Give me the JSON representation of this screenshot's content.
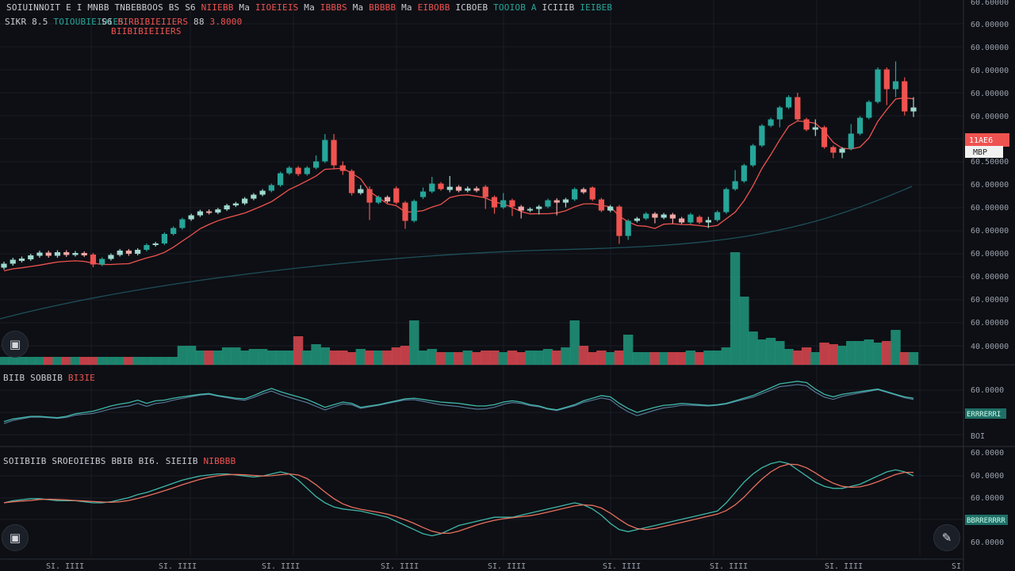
{
  "header": {
    "line1": [
      {
        "text": "SOIUINNOIT",
        "color": "w"
      },
      {
        "text": "E I",
        "color": "w"
      },
      {
        "text": "MNBB",
        "color": "w"
      },
      {
        "text": "TNBEBBOOS",
        "color": "w"
      },
      {
        "text": "BS",
        "color": "w"
      },
      {
        "text": "S6",
        "color": "w"
      },
      {
        "text": "NIIEBB",
        "color": "r"
      },
      {
        "text": "Ma",
        "color": "w"
      },
      {
        "text": "IIOEIEIS",
        "color": "r"
      },
      {
        "text": "Ma",
        "color": "w"
      },
      {
        "text": "IBBBS",
        "color": "r"
      },
      {
        "text": "Ma",
        "color": "w"
      },
      {
        "text": "BBBBB",
        "color": "r"
      },
      {
        "text": "Ma",
        "color": "w"
      },
      {
        "text": "EIBOBB",
        "color": "r"
      },
      {
        "text": "ICBOEB",
        "color": "w"
      },
      {
        "text": "TOOIOB A",
        "color": "g"
      },
      {
        "text": "ICIIIB",
        "color": "w"
      },
      {
        "text": "IEIBEB",
        "color": "g"
      }
    ],
    "line2_left": "SIKR 8.5",
    "line2_green": "TOIOUBIEIOIES",
    "line2_ticker": "S6",
    "line2_red1": "BIRBIBIEIIERS",
    "line2_red2": "BIIBIBIEIIERS",
    "line2_val": "88",
    "line2_val_red": "3.8000"
  },
  "price_labels": [
    "60.60000",
    "60.00000",
    "60.00000",
    "60.00000",
    "60.00000",
    "60.00000",
    "60.50000",
    "60.00000",
    "60.00000",
    "60.00000",
    "60.00000",
    "60.00000",
    "60.00000",
    "60.00000"
  ],
  "price_tags": {
    "current_red": "11AE6",
    "current_white": "MBP"
  },
  "panel2": {
    "label": "BIIB",
    "sub": "SOBBIB",
    "red": "BI3IE",
    "axis_top": "60.0000",
    "tag": "ERRRERRI",
    "axis_bottom": "BOI"
  },
  "panel3": {
    "label": "SOIIBIIB SROEOIEIBS BBIB",
    "r1": "BI6.",
    "r2": "SIEIIB",
    "red": "NIBBBB",
    "axis": [
      "60.0000",
      "60.0000",
      "60.0000",
      "60.0000"
    ],
    "tag": "BBRRERRRR"
  },
  "x_labels": [
    "SI. IIII",
    "SI. IIII",
    "SI. IIII",
    "SI. IIII",
    "SI. IIII",
    "SI. IIII",
    "SI. IIII",
    "SI. IIII",
    "SI"
  ],
  "buttons": {
    "camera_top": "camera-icon",
    "camera_bottom": "camera-icon",
    "draw": "draw-icon"
  },
  "colors": {
    "up": "#26a69a",
    "down": "#ef5350",
    "grid": "#1a1e26",
    "bg": "#0d0f14",
    "ma_fast": "#ef5350",
    "ma_slow": "#1f4f5a"
  },
  "chart_data": {
    "type": "candlestick",
    "ylim": [
      0,
      100
    ],
    "candles": [
      [
        44.5,
        45.5,
        44.0,
        46.0
      ],
      [
        45.5,
        46.5,
        45.0,
        47.0
      ],
      [
        46.2,
        46.8,
        45.8,
        47.3
      ],
      [
        46.6,
        47.6,
        46.2,
        48.0
      ],
      [
        47.5,
        48.3,
        47.0,
        48.8
      ],
      [
        48.3,
        47.5,
        47.0,
        48.8
      ],
      [
        47.5,
        48.4,
        47.0,
        48.9
      ],
      [
        48.4,
        47.7,
        47.2,
        48.9
      ],
      [
        47.7,
        48.2,
        47.3,
        48.7
      ],
      [
        48.2,
        47.6,
        47.2,
        48.6
      ],
      [
        47.8,
        45.3,
        44.6,
        48.2
      ],
      [
        45.3,
        46.7,
        44.9,
        47.1
      ],
      [
        46.7,
        47.7,
        46.3,
        48.1
      ],
      [
        47.7,
        48.8,
        47.3,
        49.2
      ],
      [
        48.8,
        48.0,
        47.5,
        49.2
      ],
      [
        48.0,
        49.0,
        47.6,
        49.4
      ],
      [
        49.0,
        50.2,
        48.6,
        50.6
      ],
      [
        50.2,
        50.6,
        49.8,
        51.0
      ],
      [
        50.6,
        53.0,
        50.2,
        53.4
      ],
      [
        53.0,
        54.5,
        52.6,
        54.9
      ],
      [
        54.5,
        56.7,
        54.1,
        57.1
      ],
      [
        56.7,
        57.7,
        56.3,
        58.1
      ],
      [
        57.7,
        58.7,
        57.3,
        59.1
      ],
      [
        58.7,
        58.4,
        57.9,
        59.2
      ],
      [
        58.4,
        59.2,
        58.0,
        59.6
      ],
      [
        59.2,
        60.2,
        58.8,
        60.6
      ],
      [
        60.2,
        60.7,
        59.8,
        61.1
      ],
      [
        60.7,
        61.9,
        60.3,
        62.3
      ],
      [
        61.9,
        62.9,
        61.5,
        63.3
      ],
      [
        62.9,
        63.9,
        62.5,
        64.3
      ],
      [
        63.9,
        65.3,
        63.5,
        65.7
      ],
      [
        65.3,
        68.3,
        64.9,
        68.7
      ],
      [
        68.3,
        69.7,
        67.9,
        70.1
      ],
      [
        69.7,
        68.1,
        67.6,
        70.1
      ],
      [
        68.1,
        69.7,
        67.7,
        70.1
      ],
      [
        69.7,
        71.3,
        69.3,
        72.8
      ],
      [
        71.3,
        76.7,
        70.9,
        78.2
      ],
      [
        76.7,
        70.3,
        69.3,
        78.2
      ],
      [
        70.3,
        68.9,
        67.9,
        71.3
      ],
      [
        68.9,
        63.3,
        62.7,
        69.3
      ],
      [
        63.3,
        64.3,
        62.9,
        65.3
      ],
      [
        64.3,
        60.9,
        56.5,
        65.0
      ],
      [
        60.9,
        62.3,
        60.5,
        62.7
      ],
      [
        62.3,
        61.2,
        60.8,
        62.7
      ],
      [
        64.5,
        60.9,
        60.5,
        65.0
      ],
      [
        60.9,
        56.3,
        54.3,
        61.3
      ],
      [
        56.3,
        61.3,
        55.9,
        61.7
      ],
      [
        62.3,
        63.7,
        61.8,
        64.7
      ],
      [
        63.7,
        65.7,
        63.3,
        67.4
      ],
      [
        65.7,
        64.3,
        63.9,
        66.1
      ],
      [
        64.1,
        64.9,
        63.5,
        67.6
      ],
      [
        64.9,
        63.9,
        63.5,
        65.3
      ],
      [
        63.9,
        64.5,
        63.5,
        65.0
      ],
      [
        64.5,
        63.9,
        63.5,
        65.0
      ],
      [
        64.9,
        62.3,
        59.3,
        65.3
      ],
      [
        62.3,
        59.7,
        58.1,
        62.7
      ],
      [
        59.7,
        61.5,
        59.3,
        63.3
      ],
      [
        61.5,
        59.9,
        57.5,
        61.9
      ],
      [
        59.9,
        58.9,
        56.9,
        60.3
      ],
      [
        58.9,
        59.3,
        58.5,
        59.7
      ],
      [
        59.3,
        59.9,
        57.9,
        60.3
      ],
      [
        59.9,
        61.5,
        59.5,
        61.9
      ],
      [
        61.5,
        60.9,
        57.7,
        62.0
      ],
      [
        60.9,
        61.7,
        59.7,
        62.1
      ],
      [
        61.7,
        64.3,
        61.3,
        64.7
      ],
      [
        64.3,
        63.5,
        63.1,
        64.7
      ],
      [
        64.7,
        61.7,
        61.3,
        65.0
      ],
      [
        61.7,
        58.9,
        58.5,
        62.1
      ],
      [
        58.9,
        59.9,
        58.5,
        60.3
      ],
      [
        59.9,
        52.5,
        50.5,
        60.3
      ],
      [
        52.5,
        56.3,
        51.5,
        56.7
      ],
      [
        56.3,
        56.9,
        55.9,
        57.3
      ],
      [
        56.9,
        58.1,
        56.5,
        58.5
      ],
      [
        58.1,
        57.1,
        55.7,
        58.5
      ],
      [
        57.1,
        57.9,
        56.7,
        58.3
      ],
      [
        57.9,
        56.9,
        55.7,
        58.3
      ],
      [
        56.9,
        55.9,
        55.5,
        57.3
      ],
      [
        55.9,
        57.9,
        55.5,
        58.3
      ],
      [
        57.3,
        55.9,
        55.5,
        57.7
      ],
      [
        55.9,
        56.5,
        54.5,
        57.3
      ],
      [
        56.5,
        58.5,
        56.1,
        58.9
      ],
      [
        58.5,
        64.3,
        58.1,
        64.7
      ],
      [
        64.3,
        66.3,
        63.9,
        69.1
      ],
      [
        66.3,
        70.3,
        65.9,
        70.7
      ],
      [
        70.3,
        75.3,
        69.9,
        75.7
      ],
      [
        75.3,
        80.3,
        74.9,
        80.7
      ],
      [
        80.3,
        81.9,
        79.9,
        82.3
      ],
      [
        81.9,
        84.9,
        79.9,
        85.3
      ],
      [
        84.9,
        87.5,
        84.5,
        88.0
      ],
      [
        87.5,
        81.9,
        81.5,
        88.6
      ],
      [
        81.9,
        79.3,
        78.9,
        82.3
      ],
      [
        79.3,
        79.9,
        77.7,
        81.9
      ],
      [
        79.9,
        74.9,
        74.5,
        80.3
      ],
      [
        74.9,
        73.5,
        72.1,
        75.3
      ],
      [
        73.5,
        74.5,
        72.1,
        74.9
      ],
      [
        74.5,
        78.3,
        74.1,
        80.7
      ],
      [
        78.3,
        82.3,
        77.9,
        82.7
      ],
      [
        82.3,
        86.3,
        81.9,
        86.7
      ],
      [
        86.3,
        94.5,
        85.9,
        95.0
      ],
      [
        94.5,
        89.5,
        85.5,
        95.0
      ],
      [
        89.5,
        91.5,
        87.5,
        96.5
      ],
      [
        91.5,
        83.9,
        82.9,
        92.5
      ],
      [
        83.9,
        84.9,
        82.5,
        87.5
      ]
    ],
    "volume": [
      3,
      3,
      3,
      3,
      3,
      3,
      3,
      3,
      3,
      3,
      3,
      3,
      3,
      3,
      3,
      3,
      3,
      3,
      3,
      3,
      3,
      3,
      3,
      3,
      3,
      3,
      3,
      3,
      3,
      3,
      3,
      3,
      3,
      3,
      3,
      3,
      3,
      3,
      3,
      3,
      3,
      3,
      3,
      3,
      3,
      3,
      3,
      3,
      3,
      3,
      3,
      3,
      3,
      3,
      3,
      3,
      3,
      3,
      3,
      3,
      3,
      3,
      3,
      3,
      3,
      3,
      3,
      3,
      3,
      3,
      3,
      3,
      3,
      3,
      3,
      3,
      3,
      3,
      3,
      3,
      3,
      3,
      3,
      3,
      3,
      3,
      3,
      3,
      3,
      3,
      3,
      3,
      3,
      3,
      3,
      3,
      3,
      3,
      3,
      3,
      3,
      3,
      3
    ],
    "rsi": [
      20,
      24,
      26,
      28,
      28,
      27,
      26,
      28,
      32,
      34,
      36,
      40,
      44,
      47,
      49,
      53,
      48,
      52,
      53,
      56,
      58,
      60,
      62,
      63,
      60,
      58,
      56,
      55,
      60,
      66,
      71,
      66,
      62,
      58,
      54,
      48,
      42,
      46,
      50,
      48,
      42,
      44,
      46,
      49,
      52,
      55,
      56,
      54,
      52,
      50,
      49,
      48,
      46,
      44,
      44,
      46,
      50,
      52,
      50,
      46,
      44,
      40,
      38,
      42,
      46,
      52,
      56,
      60,
      58,
      48,
      40,
      34,
      38,
      42,
      45,
      46,
      48,
      47,
      46,
      45,
      46,
      48,
      52,
      56,
      60,
      66,
      72,
      78,
      80,
      82,
      80,
      70,
      62,
      58,
      62,
      64,
      66,
      68,
      70,
      66,
      62,
      58,
      56
    ],
    "macd": [
      40,
      42,
      43,
      44,
      44,
      43,
      42,
      42,
      42,
      41,
      40,
      40,
      41,
      43,
      45,
      48,
      50,
      53,
      56,
      59,
      62,
      64,
      66,
      67,
      68,
      68,
      67,
      66,
      65,
      66,
      68,
      70,
      68,
      62,
      54,
      46,
      40,
      36,
      34,
      33,
      32,
      30,
      28,
      26,
      22,
      18,
      14,
      10,
      8,
      10,
      14,
      18,
      20,
      22,
      24,
      26,
      26,
      26,
      28,
      30,
      32,
      34,
      36,
      38,
      40,
      38,
      34,
      28,
      20,
      14,
      12,
      14,
      16,
      18,
      20,
      22,
      24,
      26,
      28,
      30,
      32,
      40,
      50,
      60,
      68,
      74,
      78,
      80,
      78,
      72,
      66,
      60,
      56,
      54,
      54,
      56,
      58,
      62,
      66,
      70,
      72,
      70,
      66
    ]
  }
}
